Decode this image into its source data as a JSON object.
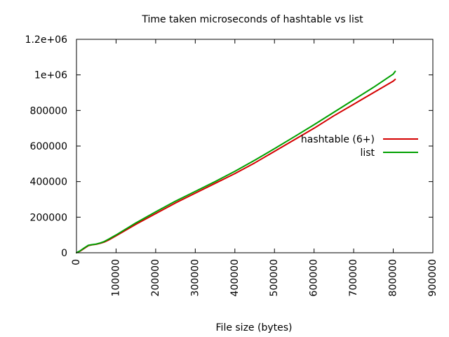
{
  "chart_data": {
    "type": "line",
    "title": "Time taken microseconds of hashtable vs list",
    "xlabel": "File size (bytes)",
    "ylabel": "",
    "xlim": [
      0,
      900000
    ],
    "ylim": [
      0,
      1200000
    ],
    "xticks": [
      0,
      100000,
      200000,
      300000,
      400000,
      500000,
      600000,
      700000,
      800000,
      900000
    ],
    "yticks": [
      0,
      200000,
      400000,
      600000,
      800000,
      1000000,
      1200000
    ],
    "xtick_labels": [
      "0",
      "100000",
      "200000",
      "300000",
      "400000",
      "500000",
      "600000",
      "700000",
      "800000",
      "900000"
    ],
    "ytick_labels": [
      "0",
      "200000",
      "400000",
      "600000",
      "800000",
      "1e+06",
      "1.2e+06"
    ],
    "grid": false,
    "legend_position": "right",
    "series": [
      {
        "name": "hashtable (6+)",
        "color": "#d40000",
        "x": [
          0,
          10000,
          20000,
          30000,
          40000,
          50000,
          60000,
          70000,
          80000,
          100000,
          150000,
          200000,
          250000,
          300000,
          350000,
          400000,
          450000,
          500000,
          550000,
          600000,
          650000,
          700000,
          750000,
          800000,
          805000
        ],
        "y": [
          0,
          10000,
          25000,
          40000,
          45000,
          48000,
          53000,
          60000,
          70000,
          95000,
          160000,
          220000,
          280000,
          335000,
          390000,
          445000,
          505000,
          570000,
          635000,
          700000,
          770000,
          835000,
          900000,
          965000,
          975000
        ]
      },
      {
        "name": "list",
        "color": "#00a000",
        "x": [
          0,
          10000,
          20000,
          30000,
          40000,
          50000,
          60000,
          70000,
          80000,
          100000,
          150000,
          200000,
          250000,
          300000,
          350000,
          400000,
          450000,
          500000,
          550000,
          600000,
          650000,
          700000,
          750000,
          800000,
          805000
        ],
        "y": [
          0,
          12000,
          28000,
          42000,
          46000,
          49000,
          55000,
          63000,
          75000,
          100000,
          168000,
          230000,
          290000,
          345000,
          400000,
          458000,
          520000,
          585000,
          652000,
          720000,
          790000,
          860000,
          930000,
          1005000,
          1020000
        ]
      }
    ]
  }
}
